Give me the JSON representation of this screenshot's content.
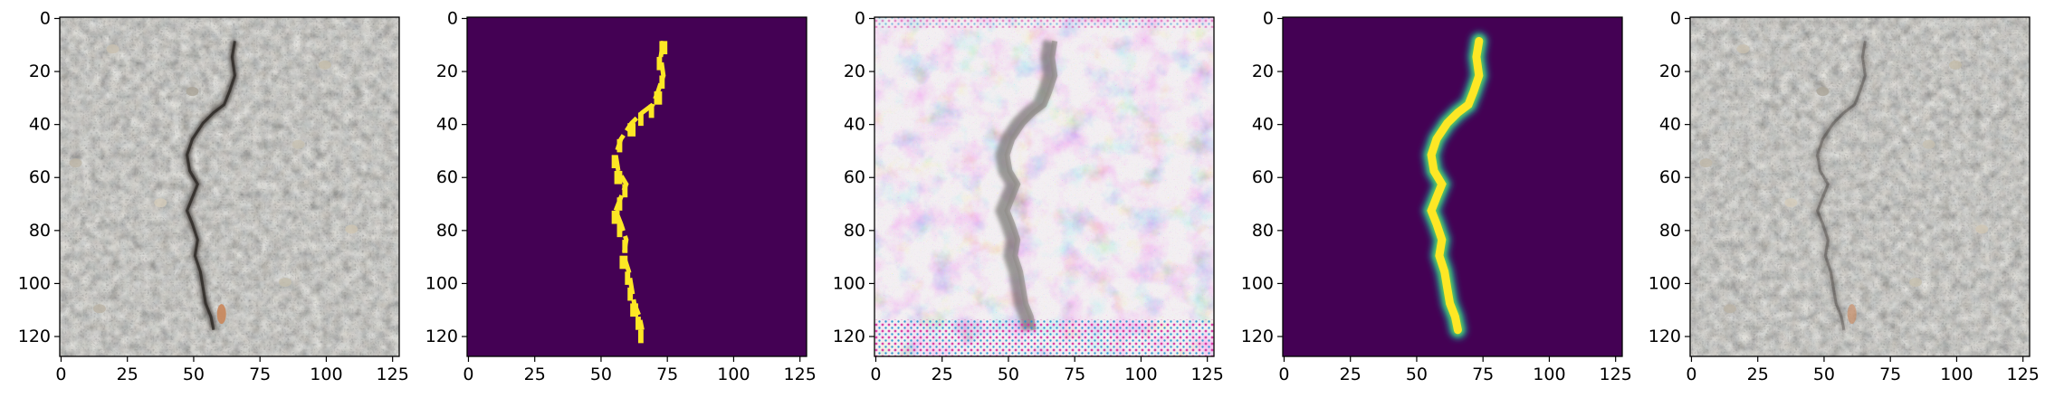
{
  "figure": {
    "panels": [
      {
        "id": "input-photo",
        "kind": "photo"
      },
      {
        "id": "ground-truth-mask",
        "kind": "mask"
      },
      {
        "id": "noisy-reconstruction",
        "kind": "noisy"
      },
      {
        "id": "predicted-mask",
        "kind": "smooth-mask"
      },
      {
        "id": "blended-output",
        "kind": "faded-photo"
      }
    ],
    "x_ticks": [
      "0",
      "25",
      "50",
      "75",
      "100",
      "125"
    ],
    "y_ticks": [
      "0",
      "20",
      "40",
      "60",
      "80",
      "100",
      "120"
    ],
    "x_tick_values": [
      0,
      25,
      50,
      75,
      100,
      125
    ],
    "y_tick_values": [
      0,
      20,
      40,
      60,
      80,
      100,
      120
    ],
    "image_extent": [
      128,
      128
    ],
    "colors": {
      "mask_background": "#440154",
      "mask_crack": "#fde725",
      "mask_edge_teal": "#21918c",
      "asphalt_gray": "#8c8a84"
    }
  }
}
